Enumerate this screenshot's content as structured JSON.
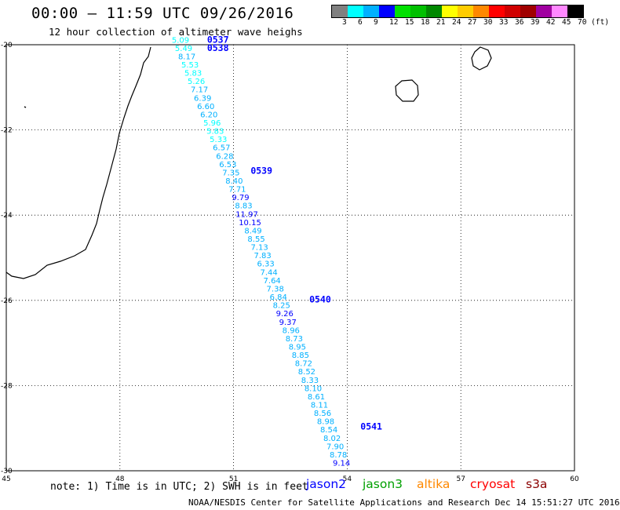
{
  "header": {
    "title": "00:00 – 11:59 UTC 09/26/2016",
    "subtitle": "12 hour collection of altimeter wave heighs"
  },
  "legend": {
    "swatches": [
      {
        "color": "#808080",
        "label": "3"
      },
      {
        "color": "#00FFFF",
        "label": "6"
      },
      {
        "color": "#00B0FF",
        "label": "9"
      },
      {
        "color": "#0000FF",
        "label": "12"
      },
      {
        "color": "#00E000",
        "label": "15"
      },
      {
        "color": "#00C000",
        "label": "18"
      },
      {
        "color": "#008800",
        "label": "21"
      },
      {
        "color": "#FFFF00",
        "label": "24"
      },
      {
        "color": "#FFCC00",
        "label": "27"
      },
      {
        "color": "#FF8800",
        "label": "30"
      },
      {
        "color": "#FF0000",
        "label": "33"
      },
      {
        "color": "#D00000",
        "label": "36"
      },
      {
        "color": "#A00000",
        "label": "39"
      },
      {
        "color": "#A000A0",
        "label": "42"
      },
      {
        "color": "#FF88FF",
        "label": "45"
      },
      {
        "color": "#000000",
        "label": "70 (ft)"
      }
    ]
  },
  "map": {
    "lon_ticks": [
      "45",
      "48",
      "51",
      "54",
      "57",
      "60"
    ],
    "lat_ticks": [
      "-20",
      "-22",
      "-24",
      "-26",
      "-28",
      "-30"
    ],
    "lon_range": [
      45,
      60
    ],
    "lat_range": [
      -30,
      -20
    ],
    "grid": true,
    "land_outline_color": "#000000"
  },
  "time_labels": [
    {
      "text": "0537",
      "lon": 50.3,
      "lat": -19.95
    },
    {
      "text": "0538",
      "lon": 50.3,
      "lat": -20.15
    },
    {
      "text": "0539",
      "lon": 51.45,
      "lat": -23.03
    },
    {
      "text": "0540",
      "lon": 53.0,
      "lat": -26.05
    },
    {
      "text": "0541",
      "lon": 54.35,
      "lat": -29.03
    }
  ],
  "swh_points": [
    {
      "v": "5.09",
      "c": "#00FFFF"
    },
    {
      "v": "5.49",
      "c": "#00FFFF"
    },
    {
      "v": "8.17",
      "c": "#00B0FF"
    },
    {
      "v": "5.53",
      "c": "#00FFFF"
    },
    {
      "v": "5.83",
      "c": "#00FFFF"
    },
    {
      "v": "5.26",
      "c": "#00FFFF"
    },
    {
      "v": "7.17",
      "c": "#00B0FF"
    },
    {
      "v": "6.39",
      "c": "#00B0FF"
    },
    {
      "v": "6.60",
      "c": "#00B0FF"
    },
    {
      "v": "6.20",
      "c": "#00B0FF"
    },
    {
      "v": "5.96",
      "c": "#00FFFF"
    },
    {
      "v": "5.83",
      "c": "#00FFFF"
    },
    {
      "v": "5.33",
      "c": "#00FFFF"
    },
    {
      "v": "6.57",
      "c": "#00B0FF"
    },
    {
      "v": "6.28",
      "c": "#00B0FF"
    },
    {
      "v": "6.53",
      "c": "#00B0FF"
    },
    {
      "v": "7.35",
      "c": "#00B0FF"
    },
    {
      "v": "8.40",
      "c": "#00B0FF"
    },
    {
      "v": "7.71",
      "c": "#00B0FF"
    },
    {
      "v": "9.79",
      "c": "#0000FF"
    },
    {
      "v": "8.83",
      "c": "#00B0FF"
    },
    {
      "v": "11.97",
      "c": "#0000FF"
    },
    {
      "v": "10.15",
      "c": "#0000FF"
    },
    {
      "v": "8.49",
      "c": "#00B0FF"
    },
    {
      "v": "8.55",
      "c": "#00B0FF"
    },
    {
      "v": "7.13",
      "c": "#00B0FF"
    },
    {
      "v": "7.83",
      "c": "#00B0FF"
    },
    {
      "v": "6.33",
      "c": "#00B0FF"
    },
    {
      "v": "7.44",
      "c": "#00B0FF"
    },
    {
      "v": "7.64",
      "c": "#00B0FF"
    },
    {
      "v": "7.38",
      "c": "#00B0FF"
    },
    {
      "v": "6.84",
      "c": "#00B0FF"
    },
    {
      "v": "8.25",
      "c": "#00B0FF"
    },
    {
      "v": "9.26",
      "c": "#0000FF"
    },
    {
      "v": "9.37",
      "c": "#0000FF"
    },
    {
      "v": "8.96",
      "c": "#00B0FF"
    },
    {
      "v": "8.73",
      "c": "#00B0FF"
    },
    {
      "v": "8.95",
      "c": "#00B0FF"
    },
    {
      "v": "8.85",
      "c": "#00B0FF"
    },
    {
      "v": "8.72",
      "c": "#00B0FF"
    },
    {
      "v": "8.52",
      "c": "#00B0FF"
    },
    {
      "v": "8.33",
      "c": "#00B0FF"
    },
    {
      "v": "8.10",
      "c": "#00B0FF"
    },
    {
      "v": "8.61",
      "c": "#00B0FF"
    },
    {
      "v": "8.11",
      "c": "#00B0FF"
    },
    {
      "v": "8.56",
      "c": "#00B0FF"
    },
    {
      "v": "8.98",
      "c": "#00B0FF"
    },
    {
      "v": "8.54",
      "c": "#00B0FF"
    },
    {
      "v": "8.02",
      "c": "#00B0FF"
    },
    {
      "v": "7.90",
      "c": "#00B0FF"
    },
    {
      "v": "8.78",
      "c": "#00B0FF"
    },
    {
      "v": "9.14",
      "c": "#0000FF"
    }
  ],
  "track": {
    "start_lon": 49.6,
    "start_lat": -19.95,
    "end_lon": 53.85,
    "end_lat": -29.88
  },
  "note": "note: 1) Time is in UTC; 2) SWH is in feet",
  "satellites": [
    {
      "name": "jason2",
      "color": "#0000FF"
    },
    {
      "name": "jason3",
      "color": "#00A000"
    },
    {
      "name": "altika",
      "color": "#FF8800"
    },
    {
      "name": "cryosat",
      "color": "#FF0000"
    },
    {
      "name": "s3a",
      "color": "#8B0000"
    }
  ],
  "footer": "NOAA/NESDIS Center for Satellite Applications and Research   Dec 14 15:51:27 UTC 2016"
}
